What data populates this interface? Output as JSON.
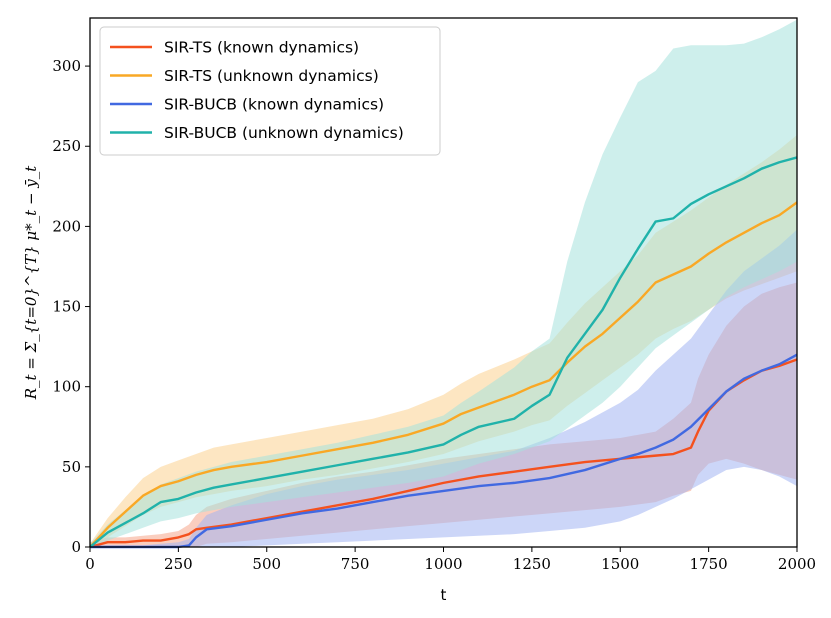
{
  "chart_data": {
    "type": "line",
    "title": "",
    "xlabel": "t",
    "ylabel": "R_t = Σ_{t=0}^{T} μ*_t − ȳ_t",
    "xlim": [
      0,
      2000
    ],
    "ylim": [
      0,
      330
    ],
    "xticks": [
      0,
      250,
      500,
      750,
      1000,
      1250,
      1500,
      1750,
      2000
    ],
    "yticks": [
      0,
      50,
      100,
      150,
      200,
      250,
      300
    ],
    "legend_position": "top-left",
    "series": [
      {
        "name": "SIR-TS (known dynamics)",
        "color": "#f4511e",
        "band_color": "#f6a58a",
        "x": [
          0,
          50,
          100,
          150,
          200,
          250,
          280,
          300,
          330,
          400,
          500,
          600,
          700,
          800,
          900,
          1000,
          1100,
          1200,
          1300,
          1400,
          1500,
          1600,
          1650,
          1700,
          1720,
          1750,
          1800,
          1850,
          1900,
          1950,
          2000
        ],
        "y": [
          0,
          3,
          3,
          4,
          4,
          6,
          8,
          11,
          12,
          14,
          18,
          22,
          26,
          30,
          35,
          40,
          44,
          47,
          50,
          53,
          55,
          57,
          58,
          62,
          72,
          85,
          97,
          104,
          110,
          113,
          117
        ],
        "lower": [
          0,
          0,
          0,
          0,
          0,
          0,
          0,
          0,
          2,
          3,
          5,
          7,
          9,
          11,
          13,
          15,
          17,
          19,
          21,
          23,
          25,
          28,
          32,
          35,
          45,
          52,
          55,
          52,
          48,
          45,
          42
        ],
        "upper": [
          3,
          6,
          6,
          7,
          8,
          10,
          14,
          20,
          25,
          30,
          35,
          40,
          44,
          47,
          51,
          55,
          58,
          61,
          64,
          66,
          68,
          72,
          80,
          90,
          105,
          120,
          138,
          150,
          158,
          162,
          165
        ]
      },
      {
        "name": "SIR-TS (unknown dynamics)",
        "color": "#f9a825",
        "band_color": "#fbd18f",
        "x": [
          0,
          50,
          100,
          150,
          200,
          250,
          300,
          350,
          400,
          500,
          600,
          700,
          800,
          900,
          1000,
          1050,
          1100,
          1200,
          1250,
          1300,
          1350,
          1400,
          1450,
          1500,
          1550,
          1600,
          1650,
          1700,
          1750,
          1800,
          1850,
          1900,
          1950,
          2000
        ],
        "y": [
          0,
          12,
          22,
          32,
          38,
          41,
          45,
          48,
          50,
          53,
          57,
          61,
          65,
          70,
          77,
          83,
          87,
          95,
          100,
          104,
          115,
          125,
          133,
          143,
          153,
          165,
          170,
          175,
          183,
          190,
          196,
          202,
          207,
          215
        ],
        "lower": [
          0,
          6,
          13,
          20,
          25,
          28,
          31,
          33,
          35,
          38,
          42,
          45,
          49,
          53,
          58,
          62,
          66,
          72,
          76,
          79,
          88,
          96,
          104,
          112,
          120,
          130,
          136,
          141,
          148,
          155,
          160,
          164,
          168,
          172
        ],
        "upper": [
          2,
          18,
          31,
          43,
          50,
          54,
          58,
          62,
          64,
          68,
          72,
          76,
          80,
          86,
          95,
          102,
          108,
          117,
          122,
          127,
          140,
          152,
          162,
          172,
          182,
          196,
          203,
          210,
          218,
          226,
          233,
          240,
          248,
          257
        ]
      },
      {
        "name": "SIR-BUCB (known dynamics)",
        "color": "#4169e1",
        "band_color": "#a3b5f2",
        "x": [
          0,
          50,
          100,
          150,
          200,
          250,
          280,
          300,
          330,
          400,
          500,
          600,
          700,
          800,
          900,
          1000,
          1100,
          1200,
          1300,
          1400,
          1500,
          1550,
          1600,
          1650,
          1700,
          1750,
          1800,
          1850,
          1900,
          1950,
          2000
        ],
        "y": [
          0,
          0,
          0,
          0,
          0,
          0,
          1,
          6,
          11,
          13,
          17,
          21,
          24,
          28,
          32,
          35,
          38,
          40,
          43,
          48,
          55,
          58,
          62,
          67,
          75,
          86,
          97,
          105,
          110,
          114,
          120
        ],
        "lower": [
          0,
          0,
          0,
          0,
          0,
          0,
          0,
          0,
          0,
          0,
          1,
          2,
          3,
          4,
          5,
          6,
          7,
          8,
          10,
          12,
          16,
          20,
          25,
          30,
          36,
          42,
          48,
          50,
          48,
          44,
          38
        ],
        "upper": [
          1,
          1,
          1,
          1,
          2,
          3,
          5,
          12,
          20,
          26,
          33,
          38,
          42,
          45,
          48,
          52,
          56,
          60,
          68,
          78,
          90,
          98,
          110,
          120,
          130,
          145,
          160,
          172,
          180,
          188,
          198
        ]
      },
      {
        "name": "SIR-BUCB (unknown dynamics)",
        "color": "#20b2aa",
        "band_color": "#a6e1dc",
        "x": [
          0,
          50,
          100,
          150,
          200,
          250,
          300,
          350,
          400,
          500,
          600,
          700,
          800,
          900,
          1000,
          1050,
          1100,
          1200,
          1250,
          1300,
          1350,
          1400,
          1450,
          1500,
          1550,
          1600,
          1650,
          1700,
          1750,
          1800,
          1850,
          1900,
          1950,
          2000
        ],
        "y": [
          0,
          9,
          15,
          21,
          28,
          30,
          34,
          37,
          39,
          43,
          47,
          51,
          55,
          59,
          64,
          70,
          75,
          80,
          88,
          95,
          118,
          133,
          148,
          168,
          186,
          203,
          205,
          214,
          220,
          225,
          230,
          236,
          240,
          243
        ],
        "lower": [
          0,
          4,
          8,
          12,
          16,
          18,
          21,
          23,
          25,
          28,
          31,
          34,
          37,
          40,
          44,
          48,
          52,
          58,
          62,
          66,
          74,
          82,
          90,
          100,
          112,
          124,
          132,
          140,
          148,
          156,
          162,
          167,
          172,
          178
        ],
        "upper": [
          2,
          14,
          23,
          31,
          39,
          43,
          47,
          50,
          53,
          57,
          61,
          65,
          70,
          75,
          82,
          90,
          97,
          112,
          122,
          130,
          178,
          215,
          245,
          268,
          290,
          297,
          311,
          313,
          313,
          313,
          314,
          318,
          323,
          329
        ]
      }
    ]
  }
}
